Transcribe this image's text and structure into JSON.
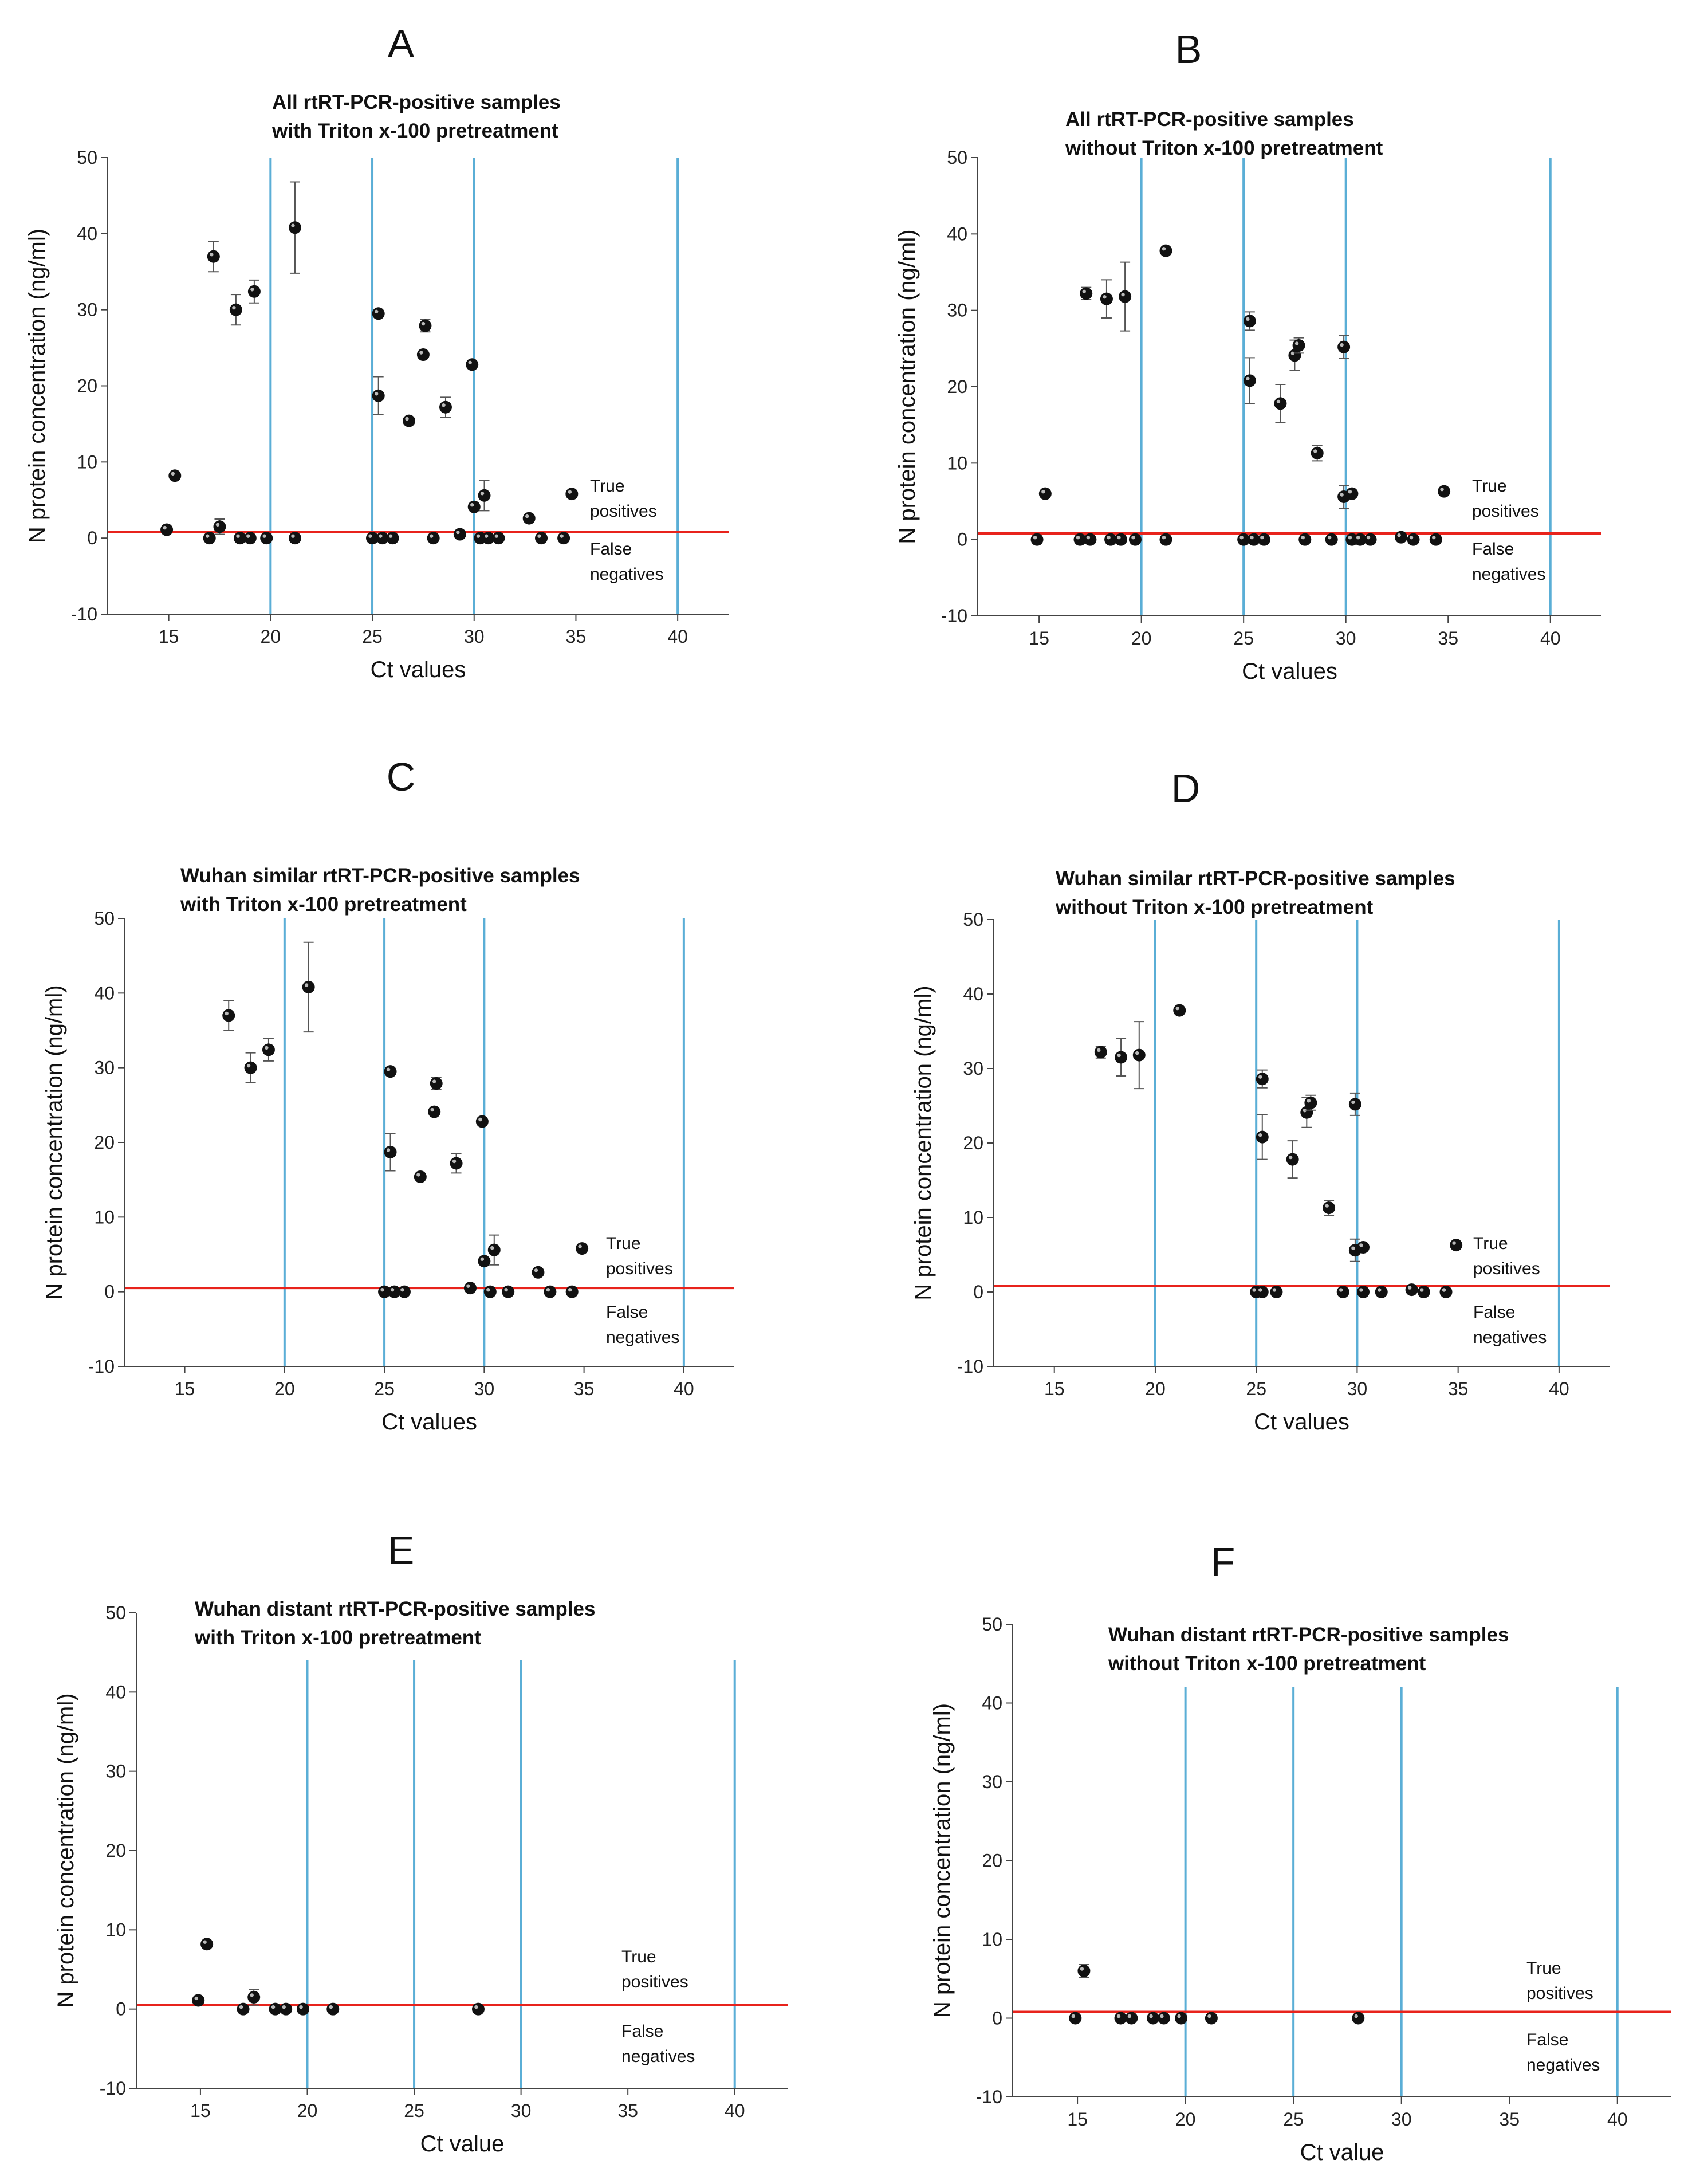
{
  "chart_data": [
    {
      "type": "scatter",
      "panel": "A",
      "title": [
        "All rtRT-PCR-positive samples",
        "with Triton x-100 pretreatment"
      ],
      "xlabel": "Ct values",
      "ylabel": "N protein concentration (ng/ml)",
      "xlim": [
        12,
        42.5
      ],
      "ylim": [
        -10,
        50
      ],
      "xticks": [
        15,
        20,
        25,
        30,
        35,
        40
      ],
      "yticks": [
        -10,
        0,
        10,
        20,
        30,
        40,
        50
      ],
      "vlines": [
        20,
        25,
        30,
        40
      ],
      "threshold": 0.8,
      "annotations": [
        "True",
        "positives",
        "False",
        "negatives"
      ],
      "points": [
        {
          "x": 14.9,
          "y": 1.1
        },
        {
          "x": 15.3,
          "y": 8.2
        },
        {
          "x": 17.0,
          "y": 0
        },
        {
          "x": 17.2,
          "y": 37.0,
          "err": 2.0
        },
        {
          "x": 17.5,
          "y": 1.5,
          "err": 1.0
        },
        {
          "x": 18.3,
          "y": 30.0,
          "err": 2.0
        },
        {
          "x": 18.5,
          "y": 0
        },
        {
          "x": 19.0,
          "y": 0
        },
        {
          "x": 19.2,
          "y": 32.4,
          "err": 1.5
        },
        {
          "x": 19.8,
          "y": 0
        },
        {
          "x": 21.2,
          "y": 40.8,
          "err": 6.0
        },
        {
          "x": 21.2,
          "y": 0
        },
        {
          "x": 25.0,
          "y": 0
        },
        {
          "x": 25.3,
          "y": 29.5
        },
        {
          "x": 25.3,
          "y": 18.7,
          "err": 2.5
        },
        {
          "x": 25.5,
          "y": 0
        },
        {
          "x": 26.0,
          "y": 0
        },
        {
          "x": 26.8,
          "y": 15.4
        },
        {
          "x": 27.5,
          "y": 24.1
        },
        {
          "x": 27.6,
          "y": 27.9,
          "err": 0.8
        },
        {
          "x": 28.0,
          "y": 0
        },
        {
          "x": 28.6,
          "y": 17.2,
          "err": 1.3
        },
        {
          "x": 29.3,
          "y": 0.5
        },
        {
          "x": 29.9,
          "y": 22.8
        },
        {
          "x": 30.0,
          "y": 4.1
        },
        {
          "x": 30.3,
          "y": 0
        },
        {
          "x": 30.5,
          "y": 5.6,
          "err": 2.0
        },
        {
          "x": 30.7,
          "y": 0
        },
        {
          "x": 31.2,
          "y": 0
        },
        {
          "x": 32.7,
          "y": 2.6
        },
        {
          "x": 33.3,
          "y": 0
        },
        {
          "x": 34.4,
          "y": 0
        },
        {
          "x": 34.8,
          "y": 5.8
        }
      ]
    },
    {
      "type": "scatter",
      "panel": "B",
      "title": [
        "All rtRT-PCR-positive samples",
        "without Triton x-100 pretreatment"
      ],
      "xlabel": "Ct values",
      "ylabel": "N protein concentration (ng/ml)",
      "xlim": [
        12,
        42.5
      ],
      "ylim": [
        -10,
        50
      ],
      "xticks": [
        15,
        20,
        25,
        30,
        35,
        40
      ],
      "yticks": [
        -10,
        0,
        10,
        20,
        30,
        40,
        50
      ],
      "vlines": [
        20,
        25,
        30,
        40
      ],
      "threshold": 0.8,
      "annotations": [
        "True",
        "positives",
        "False",
        "negatives"
      ],
      "points": [
        {
          "x": 14.9,
          "y": 0
        },
        {
          "x": 15.3,
          "y": 6.0
        },
        {
          "x": 17.0,
          "y": 0
        },
        {
          "x": 17.3,
          "y": 32.2,
          "err": 0.8
        },
        {
          "x": 17.5,
          "y": 0
        },
        {
          "x": 18.3,
          "y": 31.5,
          "err": 2.5
        },
        {
          "x": 18.5,
          "y": 0
        },
        {
          "x": 19.0,
          "y": 0
        },
        {
          "x": 19.2,
          "y": 31.8,
          "err": 4.5
        },
        {
          "x": 19.7,
          "y": 0
        },
        {
          "x": 21.2,
          "y": 37.8
        },
        {
          "x": 21.2,
          "y": 0
        },
        {
          "x": 25.0,
          "y": 0
        },
        {
          "x": 25.3,
          "y": 28.6,
          "err": 1.2
        },
        {
          "x": 25.3,
          "y": 20.8,
          "err": 3.0
        },
        {
          "x": 25.5,
          "y": 0
        },
        {
          "x": 26.0,
          "y": 0
        },
        {
          "x": 26.8,
          "y": 17.8,
          "err": 2.5
        },
        {
          "x": 27.5,
          "y": 24.1,
          "err": 2.0
        },
        {
          "x": 27.7,
          "y": 25.4,
          "err": 1.0
        },
        {
          "x": 28.0,
          "y": 0
        },
        {
          "x": 28.6,
          "y": 11.3,
          "err": 1.0
        },
        {
          "x": 29.3,
          "y": 0
        },
        {
          "x": 29.9,
          "y": 25.2,
          "err": 1.5
        },
        {
          "x": 29.9,
          "y": 5.6,
          "err": 1.5
        },
        {
          "x": 30.3,
          "y": 6.0
        },
        {
          "x": 30.3,
          "y": 0
        },
        {
          "x": 30.7,
          "y": 0
        },
        {
          "x": 31.2,
          "y": 0
        },
        {
          "x": 32.7,
          "y": 0.3
        },
        {
          "x": 33.3,
          "y": 0
        },
        {
          "x": 34.4,
          "y": 0
        },
        {
          "x": 34.8,
          "y": 6.3
        }
      ]
    },
    {
      "type": "scatter",
      "panel": "C",
      "title": [
        "Wuhan similar rtRT-PCR-positive samples",
        "with Triton x-100 pretreatment"
      ],
      "xlabel": "Ct values",
      "ylabel": "N protein concentration (ng/ml)",
      "xlim": [
        12,
        42.5
      ],
      "ylim": [
        -10,
        50
      ],
      "xticks": [
        15,
        20,
        25,
        30,
        35,
        40
      ],
      "yticks": [
        -10,
        0,
        10,
        20,
        30,
        40,
        50
      ],
      "vlines": [
        20,
        25,
        30,
        40
      ],
      "threshold": 0.5,
      "annotations": [
        "True",
        "positives",
        "False",
        "negatives"
      ],
      "points": [
        {
          "x": 17.2,
          "y": 37.0,
          "err": 2.0
        },
        {
          "x": 18.3,
          "y": 30.0,
          "err": 2.0
        },
        {
          "x": 19.2,
          "y": 32.4,
          "err": 1.5
        },
        {
          "x": 21.2,
          "y": 40.8,
          "err": 6.0
        },
        {
          "x": 25.0,
          "y": 0
        },
        {
          "x": 25.3,
          "y": 29.5
        },
        {
          "x": 25.3,
          "y": 18.7,
          "err": 2.5
        },
        {
          "x": 25.5,
          "y": 0
        },
        {
          "x": 26.0,
          "y": 0
        },
        {
          "x": 26.8,
          "y": 15.4
        },
        {
          "x": 27.5,
          "y": 24.1
        },
        {
          "x": 27.6,
          "y": 27.9,
          "err": 0.8
        },
        {
          "x": 28.6,
          "y": 17.2,
          "err": 1.3
        },
        {
          "x": 29.3,
          "y": 0.5
        },
        {
          "x": 29.9,
          "y": 22.8
        },
        {
          "x": 30.0,
          "y": 4.1
        },
        {
          "x": 30.3,
          "y": 0
        },
        {
          "x": 30.5,
          "y": 5.6,
          "err": 2.0
        },
        {
          "x": 31.2,
          "y": 0
        },
        {
          "x": 32.7,
          "y": 2.6
        },
        {
          "x": 33.3,
          "y": 0
        },
        {
          "x": 34.4,
          "y": 0
        },
        {
          "x": 34.9,
          "y": 5.8
        }
      ]
    },
    {
      "type": "scatter",
      "panel": "D",
      "title": [
        "Wuhan similar rtRT-PCR-positive samples",
        "without Triton x-100 pretreatment"
      ],
      "xlabel": "Ct values",
      "ylabel": "N protein concentration (ng/ml)",
      "xlim": [
        12,
        42.5
      ],
      "ylim": [
        -10,
        50
      ],
      "xticks": [
        15,
        20,
        25,
        30,
        35,
        40
      ],
      "yticks": [
        -10,
        0,
        10,
        20,
        30,
        40,
        50
      ],
      "vlines": [
        20,
        25,
        30,
        40
      ],
      "threshold": 0.8,
      "annotations": [
        "True",
        "positives",
        "False",
        "negatives"
      ],
      "points": [
        {
          "x": 17.3,
          "y": 32.2,
          "err": 0.8
        },
        {
          "x": 18.3,
          "y": 31.5,
          "err": 2.5
        },
        {
          "x": 19.2,
          "y": 31.8,
          "err": 4.5
        },
        {
          "x": 21.2,
          "y": 37.8
        },
        {
          "x": 25.0,
          "y": 0
        },
        {
          "x": 25.3,
          "y": 28.6,
          "err": 1.2
        },
        {
          "x": 25.3,
          "y": 20.8,
          "err": 3.0
        },
        {
          "x": 25.3,
          "y": 0
        },
        {
          "x": 26.0,
          "y": 0
        },
        {
          "x": 26.8,
          "y": 17.8,
          "err": 2.5
        },
        {
          "x": 27.5,
          "y": 24.1,
          "err": 2.0
        },
        {
          "x": 27.7,
          "y": 25.4,
          "err": 1.0
        },
        {
          "x": 28.6,
          "y": 11.3,
          "err": 1.0
        },
        {
          "x": 29.3,
          "y": 0
        },
        {
          "x": 29.9,
          "y": 25.2,
          "err": 1.5
        },
        {
          "x": 29.9,
          "y": 5.6,
          "err": 1.5
        },
        {
          "x": 30.3,
          "y": 6.0
        },
        {
          "x": 30.3,
          "y": 0
        },
        {
          "x": 31.2,
          "y": 0
        },
        {
          "x": 32.7,
          "y": 0.3
        },
        {
          "x": 33.3,
          "y": 0
        },
        {
          "x": 34.4,
          "y": 0
        },
        {
          "x": 34.9,
          "y": 6.3
        }
      ]
    },
    {
      "type": "scatter",
      "panel": "E",
      "title": [
        "Wuhan distant rtRT-PCR-positive samples",
        "with Triton x-100 pretreatment"
      ],
      "xlabel": "Ct value",
      "ylabel": "N protein concentration (ng/ml)",
      "xlim": [
        12,
        42.5
      ],
      "ylim": [
        -10,
        50
      ],
      "xticks": [
        15,
        20,
        25,
        30,
        35,
        40
      ],
      "yticks": [
        -10,
        0,
        10,
        20,
        30,
        40,
        50
      ],
      "vlines": [
        20,
        25,
        30,
        40
      ],
      "vline_top": 44,
      "threshold": 0.5,
      "annotations": [
        "True",
        "positives",
        "False",
        "negatives"
      ],
      "points": [
        {
          "x": 14.9,
          "y": 1.1
        },
        {
          "x": 15.3,
          "y": 8.2
        },
        {
          "x": 17.0,
          "y": 0
        },
        {
          "x": 17.5,
          "y": 1.5,
          "err": 1.0
        },
        {
          "x": 18.5,
          "y": 0
        },
        {
          "x": 19.0,
          "y": 0
        },
        {
          "x": 19.8,
          "y": 0
        },
        {
          "x": 21.2,
          "y": 0
        },
        {
          "x": 28.0,
          "y": 0
        }
      ]
    },
    {
      "type": "scatter",
      "panel": "F",
      "title": [
        "Wuhan distant rtRT-PCR-positive samples",
        "without Triton x-100 pretreatment"
      ],
      "xlabel": "Ct value",
      "ylabel": "N protein concentration (ng/ml)",
      "xlim": [
        12,
        42.5
      ],
      "ylim": [
        -10,
        50
      ],
      "xticks": [
        15,
        20,
        25,
        30,
        35,
        40
      ],
      "yticks": [
        -10,
        0,
        10,
        20,
        30,
        40,
        50
      ],
      "vlines": [
        20,
        25,
        30,
        40
      ],
      "vline_top": 42,
      "threshold": 0.8,
      "annotations": [
        "True",
        "positives",
        "False",
        "negatives"
      ],
      "points": [
        {
          "x": 14.9,
          "y": 0
        },
        {
          "x": 15.3,
          "y": 6.0,
          "err": 0.8
        },
        {
          "x": 17.0,
          "y": 0
        },
        {
          "x": 17.5,
          "y": 0
        },
        {
          "x": 18.5,
          "y": 0
        },
        {
          "x": 19.0,
          "y": 0
        },
        {
          "x": 19.8,
          "y": 0
        },
        {
          "x": 21.2,
          "y": 0
        },
        {
          "x": 28.0,
          "y": 0
        }
      ]
    }
  ]
}
